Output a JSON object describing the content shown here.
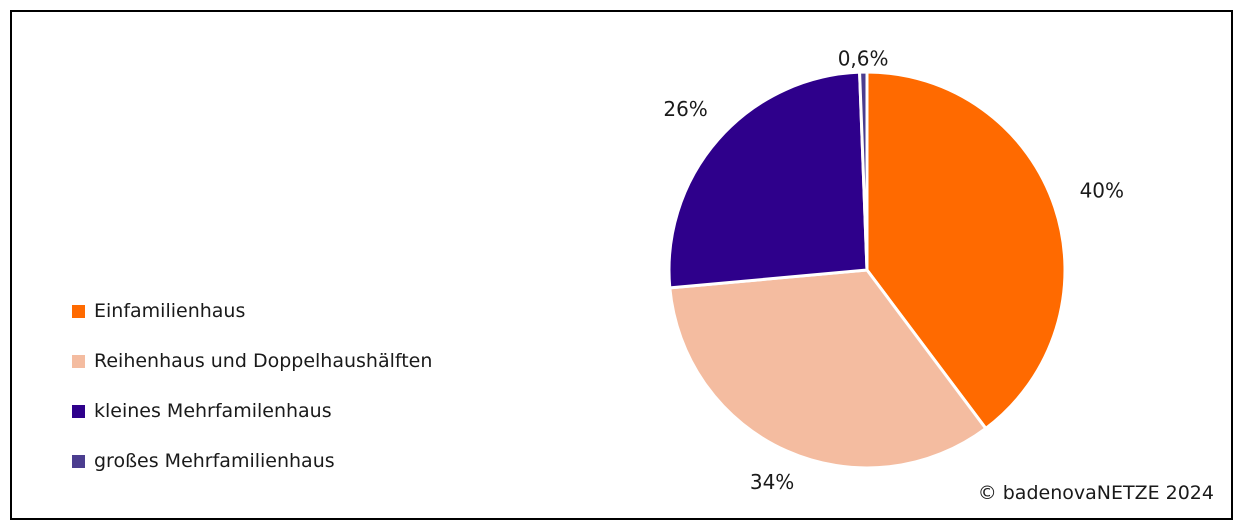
{
  "chart_data": {
    "type": "pie",
    "title": "",
    "categories": [
      "Einfamilienhaus",
      "Reihenhaus und Doppelhaushälften",
      "kleines Mehrfamilenhaus",
      "großes Mehrfamilienhaus"
    ],
    "values": [
      40,
      34,
      26,
      0.6
    ],
    "value_labels": [
      "40%",
      "34%",
      "26%",
      "0,6%"
    ],
    "colors": [
      "#ff6a00",
      "#f4bca0",
      "#2e008b",
      "#4b3d8f"
    ],
    "legend_position": "left"
  },
  "copyright": "© badenovaNETZE 2024"
}
